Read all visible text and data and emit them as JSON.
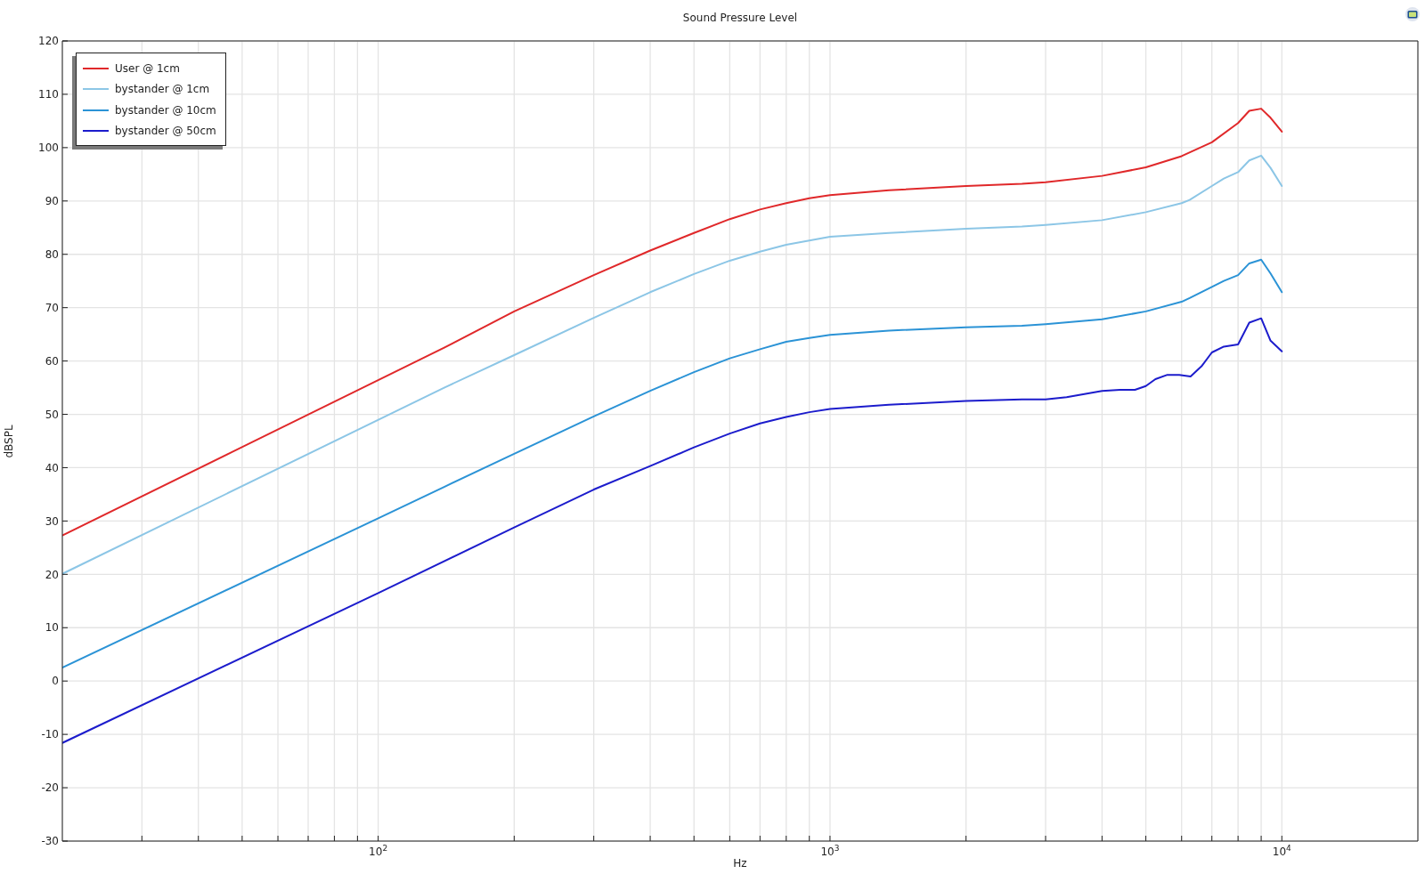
{
  "chart_data": {
    "type": "line",
    "title": "Sound Pressure Level",
    "xlabel": "Hz",
    "ylabel": "dBSPL",
    "log": "x",
    "grid": true,
    "legend": "top left",
    "xlim": [
      20,
      20000
    ],
    "xticks": [
      {
        "value": 30,
        "label": null
      },
      {
        "value": 40,
        "label": null
      },
      {
        "value": 50,
        "label": null
      },
      {
        "value": 60,
        "label": null
      },
      {
        "value": 70,
        "label": null
      },
      {
        "value": 80,
        "label": null
      },
      {
        "value": 90,
        "label": null
      },
      {
        "value": 100,
        "label": "10$^{2}$"
      },
      {
        "value": 200,
        "label": null
      },
      {
        "value": 300,
        "label": null
      },
      {
        "value": 400,
        "label": null
      },
      {
        "value": 500,
        "label": null
      },
      {
        "value": 600,
        "label": null
      },
      {
        "value": 700,
        "label": null
      },
      {
        "value": 800,
        "label": null
      },
      {
        "value": 900,
        "label": null
      },
      {
        "value": 1000,
        "label": "10$^{3}$"
      },
      {
        "value": 2000,
        "label": null
      },
      {
        "value": 3000,
        "label": null
      },
      {
        "value": 4000,
        "label": null
      },
      {
        "value": 5000,
        "label": null
      },
      {
        "value": 6000,
        "label": null
      },
      {
        "value": 7000,
        "label": null
      },
      {
        "value": 8000,
        "label": null
      },
      {
        "value": 9000,
        "label": null
      },
      {
        "value": 10000,
        "label": "10$^{4}$"
      }
    ],
    "ylim": [
      -30,
      120
    ],
    "yticks": [
      -30,
      -20,
      -10,
      0,
      10,
      20,
      30,
      40,
      50,
      60,
      70,
      80,
      90,
      100,
      110,
      120
    ],
    "series": [
      {
        "name": "User @ 1cm",
        "color": "#e0282a",
        "x": [
          20,
          140,
          200,
          300,
          400,
          500,
          600,
          700,
          800,
          900,
          1000,
          1350,
          2000,
          2660,
          3000,
          4000,
          5000,
          6000,
          7000,
          8000,
          8470,
          9000,
          9440,
          10000
        ],
        "values": [
          27.3,
          62.5,
          69.3,
          76.1,
          80.7,
          84.0,
          86.6,
          88.4,
          89.6,
          90.5,
          91.1,
          92.0,
          92.8,
          93.2,
          93.5,
          94.7,
          96.3,
          98.4,
          101.0,
          104.6,
          106.9,
          107.3,
          105.6,
          103.0
        ]
      },
      {
        "name": "bystander @ 1cm",
        "color": "#8cc6e6",
        "x": [
          20,
          140,
          200,
          300,
          400,
          500,
          600,
          700,
          800,
          900,
          1000,
          1350,
          2000,
          2660,
          3000,
          4000,
          5000,
          6000,
          6250,
          7000,
          7440,
          8000,
          8470,
          9000,
          9440,
          10000
        ],
        "values": [
          20.1,
          55.0,
          61.1,
          68.1,
          72.9,
          76.3,
          78.8,
          80.5,
          81.8,
          82.6,
          83.3,
          84.0,
          84.8,
          85.2,
          85.5,
          86.4,
          87.9,
          89.6,
          90.2,
          92.8,
          94.2,
          95.4,
          97.6,
          98.5,
          96.2,
          92.8
        ]
      },
      {
        "name": "bystander @ 10cm",
        "color": "#2b93d6",
        "x": [
          20,
          100,
          140,
          200,
          300,
          400,
          500,
          600,
          700,
          800,
          900,
          1000,
          1350,
          2000,
          2660,
          3000,
          4000,
          5000,
          6000,
          6250,
          7000,
          7440,
          8000,
          8470,
          9000,
          9440,
          10000
        ],
        "values": [
          2.5,
          30.5,
          36.4,
          42.6,
          49.6,
          54.4,
          57.9,
          60.5,
          62.2,
          63.6,
          64.3,
          64.9,
          65.7,
          66.3,
          66.6,
          66.9,
          67.8,
          69.3,
          71.1,
          71.8,
          73.9,
          75.0,
          76.1,
          78.3,
          79.0,
          76.4,
          72.9
        ]
      },
      {
        "name": "bystander @ 50cm",
        "color": "#1c1ccc",
        "x": [
          20,
          100,
          200,
          300,
          400,
          500,
          600,
          700,
          800,
          900,
          1000,
          1350,
          2000,
          2660,
          3000,
          3340,
          4000,
          4380,
          4730,
          5000,
          5250,
          5580,
          5930,
          6280,
          6640,
          7000,
          7440,
          8000,
          8470,
          9000,
          9440,
          10000
        ],
        "values": [
          -11.6,
          16.5,
          28.8,
          35.9,
          40.3,
          43.8,
          46.4,
          48.3,
          49.5,
          50.4,
          51.0,
          51.8,
          52.5,
          52.8,
          52.8,
          53.2,
          54.4,
          54.6,
          54.6,
          55.3,
          56.6,
          57.4,
          57.4,
          57.1,
          59.0,
          61.6,
          62.7,
          63.1,
          67.2,
          68.0,
          63.8,
          61.8
        ]
      }
    ]
  }
}
